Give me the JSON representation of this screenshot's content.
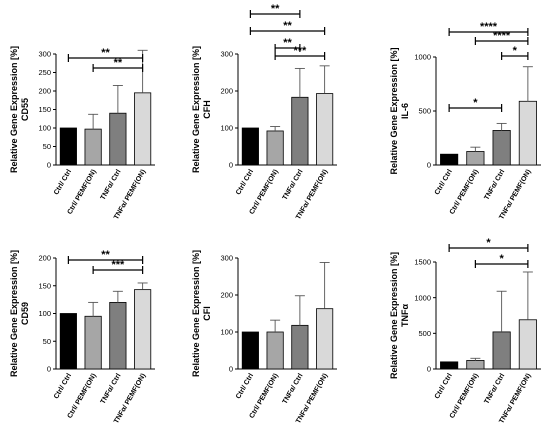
{
  "chart_data": [
    {
      "type": "bar",
      "ylabel_main": "Relative Gene Expression [%]",
      "ylabel_gene": "CD55",
      "categories": [
        "Ctrl/ Ctrl",
        "Ctrl/ PEMF(ON)",
        "TNFα/ Ctrl",
        "TNFα/ PEMF(ON)"
      ],
      "values": [
        100,
        97,
        140,
        195
      ],
      "errors": [
        0,
        40,
        75,
        115
      ],
      "ylim": [
        0,
        300
      ],
      "yticks": [
        "0",
        "50",
        "100",
        "150",
        "200",
        "250",
        "300"
      ],
      "bar_colors": [
        "#000000",
        "#a6a6a6",
        "#7f7f7f",
        "#d9d9d9"
      ],
      "significance": [
        {
          "from": 0,
          "to": 3,
          "label": "**"
        },
        {
          "from": 1,
          "to": 3,
          "label": "**"
        }
      ]
    },
    {
      "type": "bar",
      "ylabel_main": "Relative Gene Expression [%]",
      "ylabel_gene": "CFH",
      "categories": [
        "Ctrl/ Ctrl",
        "Ctrl/ PEMF(ON)",
        "TNFα/ Ctrl",
        "TNFα/ PEMF(ON)"
      ],
      "values": [
        100,
        92,
        183,
        193
      ],
      "errors": [
        0,
        12,
        78,
        75
      ],
      "ylim": [
        0,
        300
      ],
      "yticks": [
        "0",
        "100",
        "200",
        "300"
      ],
      "bar_colors": [
        "#000000",
        "#a6a6a6",
        "#7f7f7f",
        "#d9d9d9"
      ],
      "significance": [
        {
          "from": 0,
          "to": 2,
          "label": "**"
        },
        {
          "from": 0,
          "to": 3,
          "label": "**"
        },
        {
          "from": 1,
          "to": 2,
          "label": "**"
        },
        {
          "from": 1,
          "to": 3,
          "label": "***"
        }
      ]
    },
    {
      "type": "bar",
      "ylabel_main": "Relative Gene Expression [%]",
      "ylabel_gene": "IL-6",
      "categories": [
        "Ctrl/ Ctrl",
        "Ctrl/ PEMF(ON)",
        "TNFα/ Ctrl",
        "TNFα/ PEMF(ON)"
      ],
      "values": [
        100,
        125,
        320,
        590
      ],
      "errors": [
        0,
        40,
        65,
        320
      ],
      "ylim": [
        0,
        1000
      ],
      "yticks": [
        "0",
        "500",
        "1000"
      ],
      "bar_colors": [
        "#000000",
        "#a6a6a6",
        "#7f7f7f",
        "#d9d9d9"
      ],
      "significance": [
        {
          "from": 0,
          "to": 3,
          "label": "****"
        },
        {
          "from": 1,
          "to": 3,
          "label": "****"
        },
        {
          "from": 2,
          "to": 3,
          "label": "*"
        },
        {
          "from": 0,
          "to": 2,
          "label": "*"
        }
      ]
    },
    {
      "type": "bar",
      "ylabel_main": "Relative Gene Expression [%]",
      "ylabel_gene": "CD59",
      "categories": [
        "Ctrl/ Ctrl",
        "Ctrl/ PEMF(ON)",
        "TNFα/ Ctrl",
        "TNFα/ PEMF(ON)"
      ],
      "values": [
        100,
        95,
        120,
        143
      ],
      "errors": [
        0,
        25,
        20,
        12
      ],
      "ylim": [
        0,
        200
      ],
      "yticks": [
        "0",
        "50",
        "100",
        "150",
        "200"
      ],
      "bar_colors": [
        "#000000",
        "#a6a6a6",
        "#7f7f7f",
        "#d9d9d9"
      ],
      "significance": [
        {
          "from": 0,
          "to": 3,
          "label": "**"
        },
        {
          "from": 1,
          "to": 3,
          "label": "***"
        }
      ]
    },
    {
      "type": "bar",
      "ylabel_main": "Relative Gene Expression [%]",
      "ylabel_gene": "CFI",
      "categories": [
        "Ctrl/ Ctrl",
        "Ctrl/ PEMF(ON)",
        "TNFα/ Ctrl",
        "TNFα/ PEMF(ON)"
      ],
      "values": [
        100,
        100,
        118,
        163
      ],
      "errors": [
        0,
        32,
        80,
        125
      ],
      "ylim": [
        0,
        300
      ],
      "yticks": [
        "0",
        "100",
        "200",
        "300"
      ],
      "bar_colors": [
        "#000000",
        "#a6a6a6",
        "#7f7f7f",
        "#d9d9d9"
      ],
      "significance": []
    },
    {
      "type": "bar",
      "ylabel_main": "Relative Gene Expression [%]",
      "ylabel_gene": "TNFα",
      "categories": [
        "Ctrl/ Ctrl",
        "Ctrl/ PEMF(ON)",
        "TNFα/ Ctrl",
        "TNFα/ PEMF(ON)"
      ],
      "values": [
        100,
        120,
        520,
        690
      ],
      "errors": [
        0,
        30,
        570,
        670
      ],
      "ylim": [
        0,
        1500
      ],
      "yticks": [
        "0",
        "500",
        "1000",
        "1500"
      ],
      "bar_colors": [
        "#000000",
        "#a6a6a6",
        "#7f7f7f",
        "#d9d9d9"
      ],
      "significance": [
        {
          "from": 0,
          "to": 3,
          "label": "*"
        },
        {
          "from": 1,
          "to": 3,
          "label": "*"
        }
      ]
    }
  ]
}
